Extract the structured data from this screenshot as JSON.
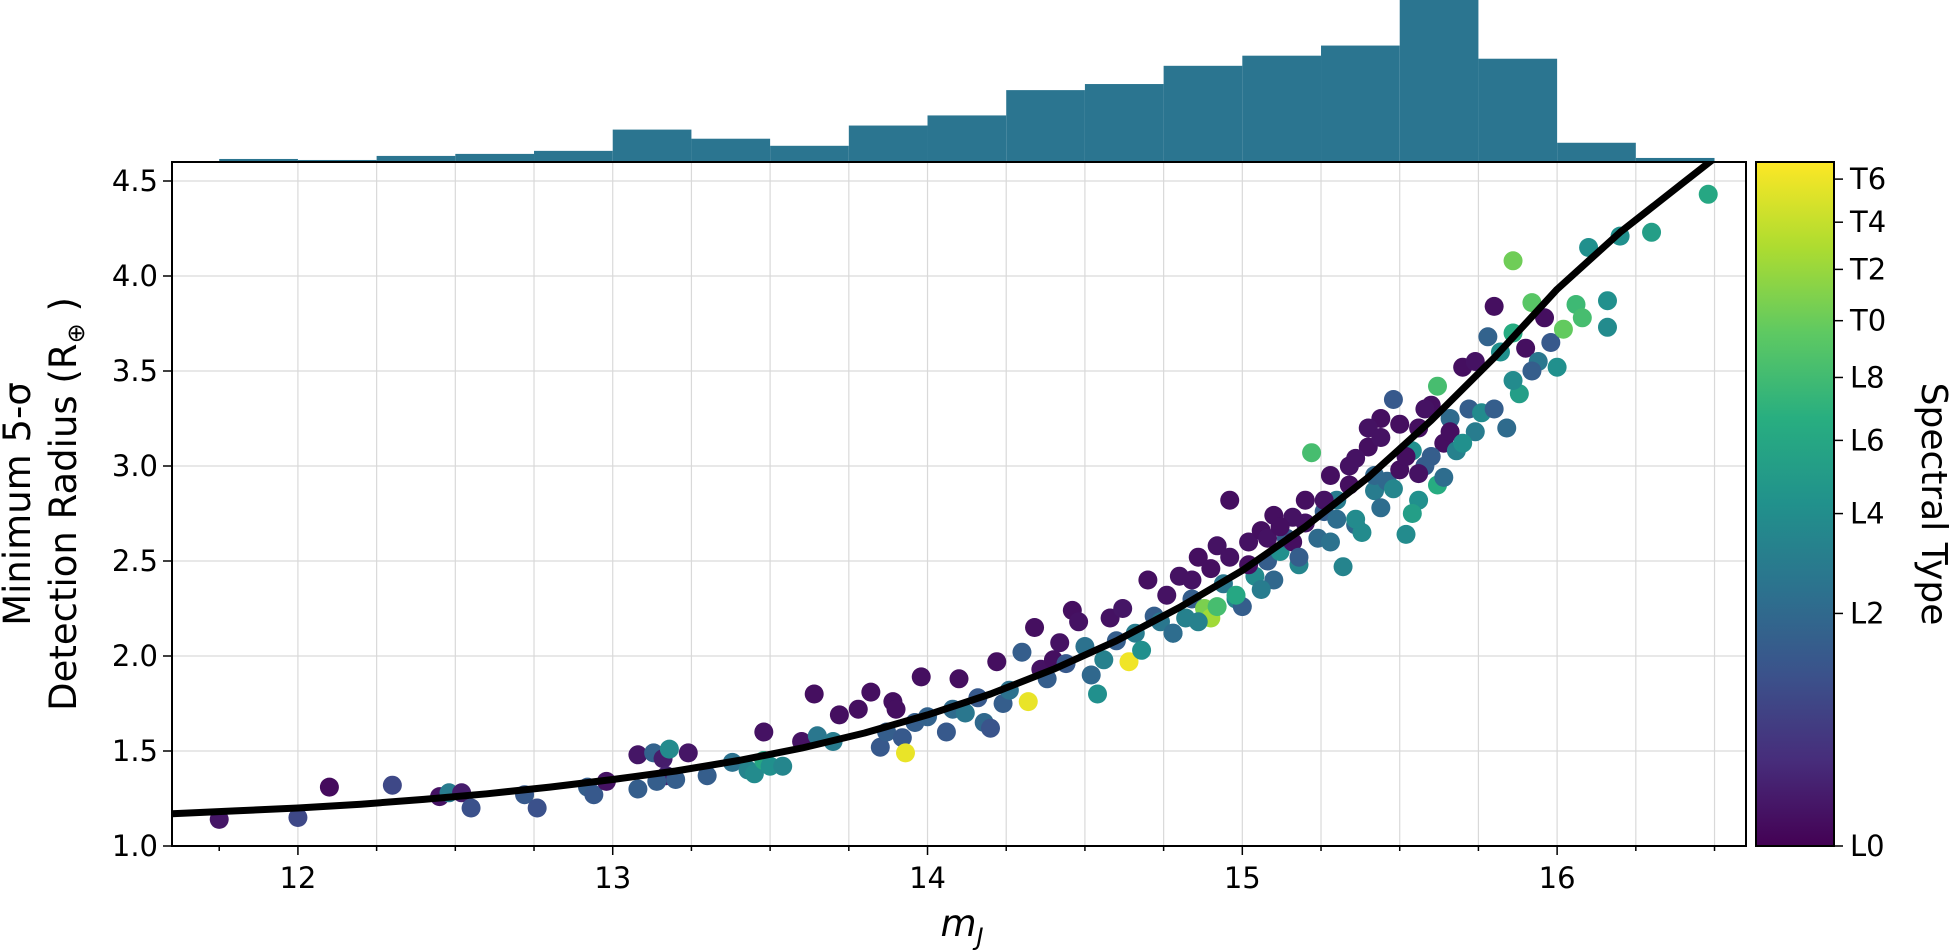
{
  "chart_data": {
    "type": "scatter",
    "xlabel": "m_J",
    "ylabel_line1": "Minimum 5-σ",
    "ylabel_line2": "Detection Radius (R",
    "ylabel_symbol": "⊕",
    "xlim": [
      11.6,
      16.6
    ],
    "ylim": [
      1.0,
      4.6
    ],
    "xticks": [
      12,
      13,
      14,
      15,
      16
    ],
    "xtick_labels": [
      "12",
      "13",
      "14",
      "15",
      "16"
    ],
    "yticks": [
      1.0,
      1.5,
      2.0,
      2.5,
      3.0,
      3.5,
      4.0,
      4.5
    ],
    "ytick_labels": [
      "1.0",
      "1.5",
      "2.0",
      "2.5",
      "3.0",
      "3.5",
      "4.0",
      "4.5"
    ],
    "grid": true,
    "colorbar": {
      "title": "Spectral Type",
      "colormap": "viridis",
      "ticks": [
        "L0",
        "L2",
        "L4",
        "L6",
        "L8",
        "T0",
        "T2",
        "T4",
        "T6"
      ],
      "tick_positions": [
        0.0,
        0.34,
        0.486,
        0.593,
        0.685,
        0.768,
        0.843,
        0.912,
        0.975
      ]
    },
    "histogram": {
      "color": "#2b7590",
      "bin_edges": [
        11.75,
        12.0,
        12.25,
        12.5,
        12.75,
        13.0,
        13.25,
        13.5,
        13.75,
        14.0,
        14.25,
        14.5,
        14.75,
        15.0,
        15.25,
        15.5,
        15.75,
        16.0,
        16.25,
        16.5
      ],
      "counts": [
        3,
        2,
        6,
        8,
        11,
        32,
        23,
        16,
        36,
        46,
        71,
        77,
        95,
        105,
        115,
        160,
        102,
        19,
        4
      ]
    },
    "fit_curve": {
      "color": "#000000",
      "x": [
        11.6,
        11.8,
        12.0,
        12.2,
        12.4,
        12.6,
        12.8,
        13.0,
        13.2,
        13.4,
        13.6,
        13.8,
        14.0,
        14.2,
        14.4,
        14.6,
        14.8,
        15.0,
        15.2,
        15.4,
        15.6,
        15.8,
        16.0,
        16.2,
        16.4,
        16.5
      ],
      "y": [
        1.17,
        1.185,
        1.2,
        1.22,
        1.245,
        1.275,
        1.31,
        1.35,
        1.395,
        1.45,
        1.515,
        1.595,
        1.69,
        1.8,
        1.93,
        2.08,
        2.255,
        2.45,
        2.68,
        2.94,
        3.24,
        3.57,
        3.93,
        4.23,
        4.49,
        4.62
      ]
    },
    "points": [
      [
        11.75,
        1.14,
        0.06
      ],
      [
        12.0,
        1.15,
        0.22
      ],
      [
        12.1,
        1.31,
        0.03
      ],
      [
        12.3,
        1.32,
        0.22
      ],
      [
        12.45,
        1.26,
        0.05
      ],
      [
        12.48,
        1.28,
        0.42
      ],
      [
        12.52,
        1.28,
        0.08
      ],
      [
        12.55,
        1.2,
        0.25
      ],
      [
        12.72,
        1.27,
        0.28
      ],
      [
        12.76,
        1.2,
        0.25
      ],
      [
        12.92,
        1.31,
        0.3
      ],
      [
        12.94,
        1.27,
        0.28
      ],
      [
        12.98,
        1.34,
        0.05
      ],
      [
        13.08,
        1.3,
        0.3
      ],
      [
        13.08,
        1.48,
        0.06
      ],
      [
        13.13,
        1.49,
        0.32
      ],
      [
        13.16,
        1.46,
        0.08
      ],
      [
        13.17,
        1.37,
        0.1
      ],
      [
        13.18,
        1.51,
        0.48
      ],
      [
        13.24,
        1.49,
        0.06
      ],
      [
        13.14,
        1.34,
        0.3
      ],
      [
        13.2,
        1.35,
        0.3
      ],
      [
        13.3,
        1.37,
        0.3
      ],
      [
        13.38,
        1.44,
        0.38
      ],
      [
        13.43,
        1.4,
        0.45
      ],
      [
        13.45,
        1.38,
        0.48
      ],
      [
        13.48,
        1.45,
        0.6
      ],
      [
        13.5,
        1.42,
        0.5
      ],
      [
        13.48,
        1.6,
        0.05
      ],
      [
        13.54,
        1.42,
        0.46
      ],
      [
        13.6,
        1.55,
        0.05
      ],
      [
        13.65,
        1.58,
        0.4
      ],
      [
        13.64,
        1.8,
        0.04
      ],
      [
        13.7,
        1.55,
        0.42
      ],
      [
        13.72,
        1.69,
        0.04
      ],
      [
        13.78,
        1.72,
        0.04
      ],
      [
        13.82,
        1.81,
        0.04
      ],
      [
        13.85,
        1.52,
        0.28
      ],
      [
        13.87,
        1.6,
        0.3
      ],
      [
        13.89,
        1.76,
        0.04
      ],
      [
        13.9,
        1.72,
        0.04
      ],
      [
        13.92,
        1.57,
        0.28
      ],
      [
        13.93,
        1.49,
        0.97
      ],
      [
        13.96,
        1.65,
        0.3
      ],
      [
        13.98,
        1.89,
        0.04
      ],
      [
        14.0,
        1.68,
        0.32
      ],
      [
        14.06,
        1.6,
        0.28
      ],
      [
        14.08,
        1.72,
        0.35
      ],
      [
        14.1,
        1.88,
        0.04
      ],
      [
        14.12,
        1.7,
        0.4
      ],
      [
        14.16,
        1.78,
        0.28
      ],
      [
        14.18,
        1.65,
        0.34
      ],
      [
        14.2,
        1.62,
        0.26
      ],
      [
        14.22,
        1.97,
        0.04
      ],
      [
        14.24,
        1.75,
        0.3
      ],
      [
        14.26,
        1.82,
        0.38
      ],
      [
        14.3,
        2.02,
        0.3
      ],
      [
        14.32,
        1.76,
        0.97
      ],
      [
        14.34,
        2.15,
        0.04
      ],
      [
        14.36,
        1.93,
        0.05
      ],
      [
        14.38,
        1.88,
        0.3
      ],
      [
        14.4,
        1.98,
        0.04
      ],
      [
        14.42,
        2.07,
        0.05
      ],
      [
        14.44,
        1.96,
        0.28
      ],
      [
        14.46,
        2.24,
        0.04
      ],
      [
        14.48,
        2.18,
        0.05
      ],
      [
        14.5,
        2.05,
        0.38
      ],
      [
        14.52,
        1.9,
        0.34
      ],
      [
        14.54,
        1.8,
        0.5
      ],
      [
        14.56,
        1.98,
        0.44
      ],
      [
        14.58,
        2.2,
        0.05
      ],
      [
        14.6,
        2.08,
        0.3
      ],
      [
        14.62,
        2.25,
        0.06
      ],
      [
        14.64,
        1.97,
        0.98
      ],
      [
        14.66,
        2.12,
        0.42
      ],
      [
        14.68,
        2.03,
        0.5
      ],
      [
        14.7,
        2.4,
        0.04
      ],
      [
        14.72,
        2.21,
        0.3
      ],
      [
        14.74,
        2.18,
        0.4
      ],
      [
        14.76,
        2.32,
        0.05
      ],
      [
        14.78,
        2.12,
        0.34
      ],
      [
        14.8,
        2.42,
        0.05
      ],
      [
        14.82,
        2.2,
        0.44
      ],
      [
        14.84,
        2.3,
        0.3
      ],
      [
        14.86,
        2.52,
        0.04
      ],
      [
        14.88,
        2.25,
        0.8
      ],
      [
        14.9,
        2.2,
        0.86
      ],
      [
        14.92,
        2.58,
        0.05
      ],
      [
        14.94,
        2.38,
        0.4
      ],
      [
        14.96,
        2.82,
        0.04
      ],
      [
        14.98,
        2.3,
        0.45
      ],
      [
        15.0,
        2.26,
        0.3
      ],
      [
        15.02,
        2.6,
        0.05
      ],
      [
        15.04,
        2.42,
        0.48
      ],
      [
        15.06,
        2.66,
        0.04
      ],
      [
        15.08,
        2.5,
        0.3
      ],
      [
        15.1,
        2.74,
        0.04
      ],
      [
        15.12,
        2.55,
        0.5
      ],
      [
        15.14,
        2.62,
        0.3
      ],
      [
        15.16,
        2.73,
        0.05
      ],
      [
        15.18,
        2.48,
        0.46
      ],
      [
        15.2,
        2.82,
        0.04
      ],
      [
        15.22,
        3.07,
        0.7
      ],
      [
        15.24,
        2.62,
        0.35
      ],
      [
        15.26,
        2.76,
        0.3
      ],
      [
        15.28,
        2.95,
        0.04
      ],
      [
        15.3,
        2.82,
        0.42
      ],
      [
        15.32,
        2.47,
        0.45
      ],
      [
        15.34,
        3.0,
        0.05
      ],
      [
        15.36,
        2.69,
        0.34
      ],
      [
        15.38,
        2.65,
        0.48
      ],
      [
        15.4,
        3.1,
        0.04
      ],
      [
        15.42,
        2.87,
        0.42
      ],
      [
        15.44,
        3.25,
        0.04
      ],
      [
        15.46,
        2.92,
        0.34
      ],
      [
        15.48,
        3.35,
        0.28
      ],
      [
        15.5,
        2.98,
        0.04
      ],
      [
        15.52,
        2.64,
        0.48
      ],
      [
        15.54,
        3.08,
        0.5
      ],
      [
        15.56,
        3.2,
        0.04
      ],
      [
        15.58,
        3.0,
        0.3
      ],
      [
        15.6,
        3.32,
        0.04
      ],
      [
        15.62,
        2.9,
        0.62
      ],
      [
        15.62,
        3.42,
        0.7
      ],
      [
        15.64,
        3.12,
        0.04
      ],
      [
        15.66,
        3.25,
        0.35
      ],
      [
        15.68,
        3.08,
        0.44
      ],
      [
        15.7,
        3.52,
        0.04
      ],
      [
        15.72,
        3.3,
        0.3
      ],
      [
        15.74,
        3.55,
        0.05
      ],
      [
        15.76,
        3.28,
        0.48
      ],
      [
        15.78,
        3.68,
        0.32
      ],
      [
        15.8,
        3.84,
        0.04
      ],
      [
        15.82,
        3.6,
        0.5
      ],
      [
        15.84,
        3.2,
        0.35
      ],
      [
        15.86,
        3.7,
        0.62
      ],
      [
        15.86,
        4.08,
        0.78
      ],
      [
        15.88,
        3.38,
        0.56
      ],
      [
        15.9,
        3.62,
        0.04
      ],
      [
        15.92,
        3.86,
        0.74
      ],
      [
        15.94,
        3.55,
        0.4
      ],
      [
        15.96,
        3.78,
        0.04
      ],
      [
        15.98,
        3.65,
        0.28
      ],
      [
        16.0,
        3.52,
        0.5
      ],
      [
        16.02,
        3.72,
        0.76
      ],
      [
        16.06,
        3.85,
        0.68
      ],
      [
        16.08,
        3.78,
        0.7
      ],
      [
        16.1,
        4.15,
        0.5
      ],
      [
        16.16,
        3.87,
        0.5
      ],
      [
        16.16,
        3.73,
        0.48
      ],
      [
        16.2,
        4.21,
        0.5
      ],
      [
        16.3,
        4.23,
        0.56
      ],
      [
        16.48,
        4.43,
        0.6
      ],
      [
        15.4,
        3.2,
        0.05
      ],
      [
        15.5,
        3.22,
        0.04
      ],
      [
        15.58,
        3.3,
        0.05
      ],
      [
        15.66,
        3.18,
        0.04
      ],
      [
        15.44,
        3.15,
        0.05
      ],
      [
        15.52,
        3.05,
        0.04
      ],
      [
        15.56,
        2.96,
        0.05
      ],
      [
        15.34,
        2.9,
        0.04
      ],
      [
        15.26,
        2.82,
        0.05
      ],
      [
        15.36,
        3.04,
        0.05
      ],
      [
        15.16,
        2.6,
        0.04
      ],
      [
        15.2,
        2.7,
        0.05
      ],
      [
        15.08,
        2.62,
        0.05
      ],
      [
        15.12,
        2.68,
        0.04
      ],
      [
        15.02,
        2.48,
        0.04
      ],
      [
        14.96,
        2.52,
        0.05
      ],
      [
        14.9,
        2.46,
        0.04
      ],
      [
        14.84,
        2.4,
        0.05
      ],
      [
        15.42,
        2.95,
        0.34
      ],
      [
        15.3,
        2.72,
        0.36
      ],
      [
        15.48,
        2.88,
        0.46
      ],
      [
        15.56,
        2.82,
        0.5
      ],
      [
        15.64,
        2.94,
        0.36
      ],
      [
        15.74,
        3.18,
        0.42
      ],
      [
        15.8,
        3.3,
        0.3
      ],
      [
        15.86,
        3.45,
        0.48
      ],
      [
        15.92,
        3.5,
        0.3
      ],
      [
        15.7,
        3.12,
        0.5
      ],
      [
        15.6,
        3.05,
        0.3
      ],
      [
        15.54,
        2.75,
        0.56
      ],
      [
        15.44,
        2.78,
        0.36
      ],
      [
        15.36,
        2.72,
        0.48
      ],
      [
        15.28,
        2.6,
        0.38
      ],
      [
        15.18,
        2.52,
        0.3
      ],
      [
        15.1,
        2.4,
        0.34
      ],
      [
        15.06,
        2.35,
        0.42
      ],
      [
        14.98,
        2.32,
        0.6
      ],
      [
        14.92,
        2.26,
        0.7
      ],
      [
        14.86,
        2.18,
        0.44
      ],
      [
        14.78,
        2.12,
        0.36
      ]
    ]
  }
}
